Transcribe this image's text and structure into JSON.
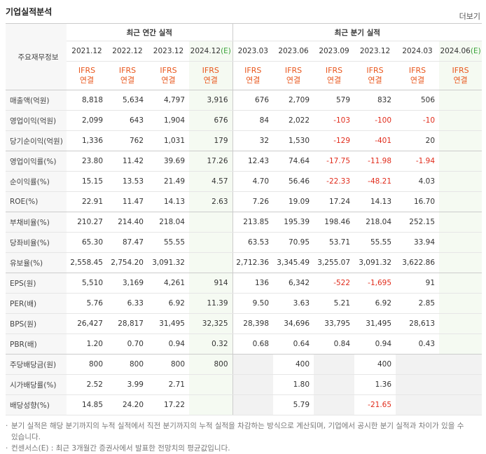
{
  "header": {
    "title": "기업실적분석",
    "more": "더보기"
  },
  "table": {
    "corner": "주요재무정보",
    "groups": [
      {
        "label": "최근 연간 실적",
        "span": 4
      },
      {
        "label": "최근 분기 실적",
        "span": 6
      }
    ],
    "columns": [
      {
        "period": "2021.12",
        "basis": "IFRS",
        "scope": "연결"
      },
      {
        "period": "2022.12",
        "basis": "IFRS",
        "scope": "연결"
      },
      {
        "period": "2023.12",
        "basis": "IFRS",
        "scope": "연결"
      },
      {
        "period": "2024.12",
        "estimate": "(E)",
        "basis": "IFRS",
        "scope": "연결"
      },
      {
        "period": "2023.03",
        "basis": "IFRS",
        "scope": "연결"
      },
      {
        "period": "2023.06",
        "basis": "IFRS",
        "scope": "연결"
      },
      {
        "period": "2023.09",
        "basis": "IFRS",
        "scope": "연결"
      },
      {
        "period": "2023.12",
        "basis": "IFRS",
        "scope": "연결"
      },
      {
        "period": "2024.03",
        "basis": "IFRS",
        "scope": "연결"
      },
      {
        "period": "2024.06",
        "estimate": "(E)",
        "basis": "IFRS",
        "scope": "연결"
      }
    ],
    "rows": [
      {
        "label": "매출액(억원)",
        "cells": [
          "8,818",
          "5,634",
          "4,797",
          "3,916",
          "676",
          "2,709",
          "579",
          "832",
          "506",
          null
        ]
      },
      {
        "label": "영업이익(억원)",
        "cells": [
          "2,099",
          "643",
          "1,904",
          "676",
          "84",
          "2,022",
          "-103",
          "-100",
          "-10",
          null
        ]
      },
      {
        "label": "당기순이익(억원)",
        "cells": [
          "1,336",
          "762",
          "1,031",
          "179",
          "32",
          "1,530",
          "-129",
          "-401",
          "20",
          null
        ]
      },
      {
        "label": "영업이익률(%)",
        "cells": [
          "23.80",
          "11.42",
          "39.69",
          "17.26",
          "12.43",
          "74.64",
          "-17.75",
          "-11.98",
          "-1.94",
          null
        ]
      },
      {
        "label": "순이익률(%)",
        "cells": [
          "15.15",
          "13.53",
          "21.49",
          "4.57",
          "4.70",
          "56.46",
          "-22.33",
          "-48.21",
          "4.03",
          null
        ]
      },
      {
        "label": "ROE(%)",
        "cells": [
          "22.91",
          "11.47",
          "14.13",
          "2.63",
          "7.26",
          "19.09",
          "17.24",
          "14.13",
          "16.70",
          null
        ]
      },
      {
        "label": "부채비율(%)",
        "cells": [
          "210.27",
          "214.40",
          "218.04",
          null,
          "213.85",
          "195.39",
          "198.46",
          "218.04",
          "252.15",
          null
        ]
      },
      {
        "label": "당좌비율(%)",
        "cells": [
          "65.30",
          "87.47",
          "55.55",
          null,
          "63.53",
          "70.95",
          "53.71",
          "55.55",
          "33.94",
          null
        ]
      },
      {
        "label": "유보율(%)",
        "cells": [
          "2,558.45",
          "2,754.20",
          "3,091.32",
          null,
          "2,712.36",
          "3,345.49",
          "3,255.07",
          "3,091.32",
          "3,622.86",
          null
        ]
      },
      {
        "label": "EPS(원)",
        "cells": [
          "5,510",
          "3,169",
          "4,261",
          "914",
          "136",
          "6,342",
          "-522",
          "-1,695",
          "91",
          null
        ]
      },
      {
        "label": "PER(배)",
        "cells": [
          "5.76",
          "6.33",
          "6.92",
          "11.39",
          "9.50",
          "3.63",
          "5.21",
          "6.92",
          "2.85",
          null
        ]
      },
      {
        "label": "BPS(원)",
        "cells": [
          "26,427",
          "28,817",
          "31,495",
          "32,325",
          "28,398",
          "34,696",
          "33,795",
          "31,495",
          "28,613",
          null
        ]
      },
      {
        "label": "PBR(배)",
        "cells": [
          "1.20",
          "0.70",
          "0.94",
          "0.32",
          "0.68",
          "0.64",
          "0.84",
          "0.94",
          "0.43",
          null
        ]
      },
      {
        "label": "주당배당금(원)",
        "cells": [
          "800",
          "800",
          "800",
          "800",
          null,
          "400",
          null,
          "400",
          null,
          null
        ]
      },
      {
        "label": "시가배당률(%)",
        "cells": [
          "2.52",
          "3.99",
          "2.71",
          null,
          null,
          "1.80",
          null,
          "1.36",
          null,
          null
        ]
      },
      {
        "label": "배당성향(%)",
        "cells": [
          "14.85",
          "24.20",
          "17.22",
          null,
          null,
          "5.79",
          null,
          "-21.65",
          null,
          null
        ]
      }
    ]
  },
  "notes": [
    "분기 실적은 해당 분기까지의 누적 실적에서 직전 분기까지의 누적 실적을 차감하는 방식으로 계산되며, 기업에서 공시한 분기 실적과 차이가 있을 수 있습니다.",
    "컨센서스(E) : 최근 3개월간 증권사에서 발표한 전망치의 평균값입니다."
  ]
}
